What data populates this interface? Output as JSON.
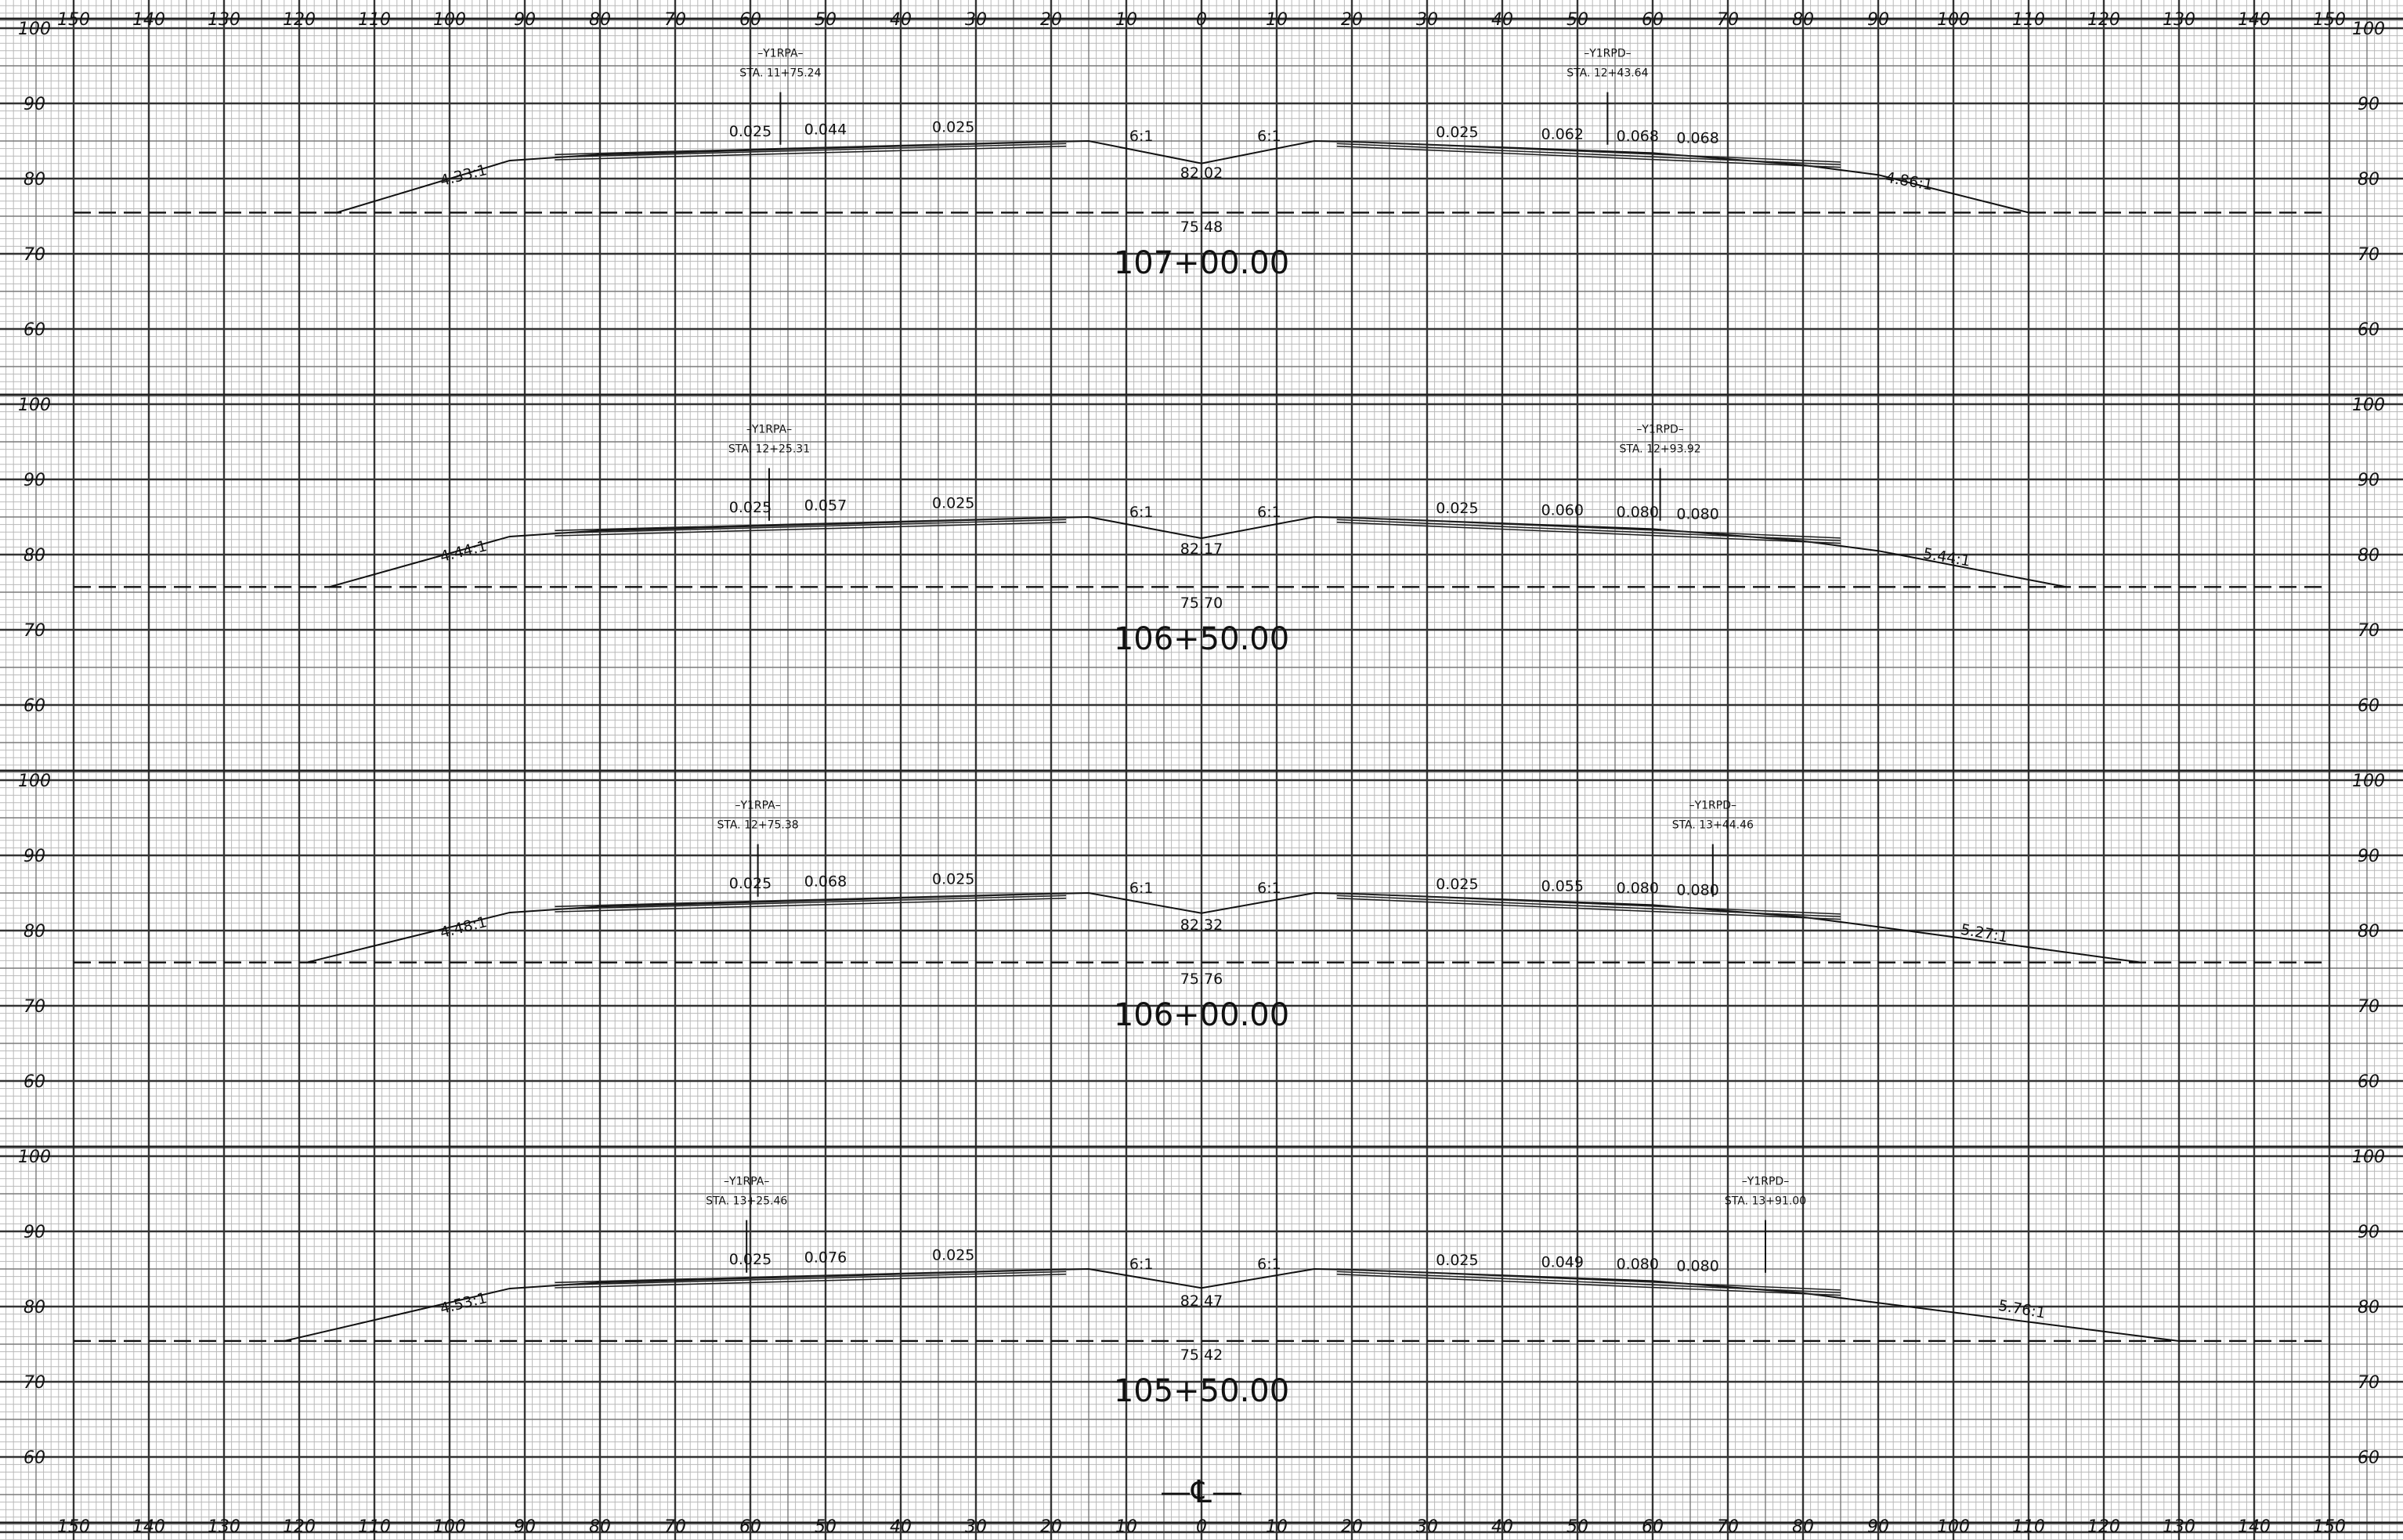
{
  "axis": {
    "offsets": [
      "150",
      "140",
      "130",
      "120",
      "110",
      "100",
      "90",
      "80",
      "70",
      "60",
      "50",
      "40",
      "30",
      "20",
      "10",
      "0",
      "10",
      "20",
      "30",
      "40",
      "50",
      "60",
      "70",
      "80",
      "90",
      "100",
      "110",
      "120",
      "130",
      "140",
      "150"
    ],
    "elevations": [
      "100",
      "90",
      "80",
      "70",
      "60"
    ]
  },
  "centerline_symbol": "—℄—",
  "sections": [
    {
      "station": "107+00.00",
      "cl_elev": "82.02",
      "ground_elev": "75.48",
      "left_ref": {
        "name": "–Y1RPA–",
        "sta": "STA. 11+75.24"
      },
      "right_ref": {
        "name": "–Y1RPD–",
        "sta": "STA. 12+43.64"
      },
      "left_slope": "4.33:1",
      "right_slope": "4.86:1",
      "left_ditch": "6:1",
      "right_ditch": "6:1",
      "left_grades": [
        "0.025",
        "0.044",
        "0.025"
      ],
      "right_grades": [
        "0.025",
        "0.062",
        "0.068",
        "0.068"
      ]
    },
    {
      "station": "106+50.00",
      "cl_elev": "82.17",
      "ground_elev": "75.70",
      "left_ref": {
        "name": "–Y1RPA–",
        "sta": "STA. 12+25.31"
      },
      "right_ref": {
        "name": "–Y1RPD–",
        "sta": "STA. 12+93.92"
      },
      "left_slope": "4.44:1",
      "right_slope": "5.44:1",
      "left_ditch": "6:1",
      "right_ditch": "6:1",
      "left_grades": [
        "0.025",
        "0.057",
        "0.025"
      ],
      "right_grades": [
        "0.025",
        "0.060",
        "0.080",
        "0.080"
      ]
    },
    {
      "station": "106+00.00",
      "cl_elev": "82.32",
      "ground_elev": "75.76",
      "left_ref": {
        "name": "–Y1RPA–",
        "sta": "STA. 12+75.38"
      },
      "right_ref": {
        "name": "–Y1RPD–",
        "sta": "STA. 13+44.46"
      },
      "left_slope": "4.48:1",
      "right_slope": "5.27:1",
      "left_ditch": "6:1",
      "right_ditch": "6:1",
      "left_grades": [
        "0.025",
        "0.068",
        "0.025"
      ],
      "right_grades": [
        "0.025",
        "0.055",
        "0.080",
        "0.080"
      ]
    },
    {
      "station": "105+50.00",
      "cl_elev": "82.47",
      "ground_elev": "75.42",
      "left_ref": {
        "name": "–Y1RPA–",
        "sta": "STA. 13+25.46"
      },
      "right_ref": {
        "name": "–Y1RPD–",
        "sta": "STA. 13+91.00"
      },
      "left_slope": "4.53:1",
      "right_slope": "5.76:1",
      "left_ditch": "6:1",
      "right_ditch": "6:1",
      "left_grades": [
        "0.025",
        "0.076",
        "0.025"
      ],
      "right_grades": [
        "0.025",
        "0.049",
        "0.080",
        "0.080"
      ]
    }
  ]
}
